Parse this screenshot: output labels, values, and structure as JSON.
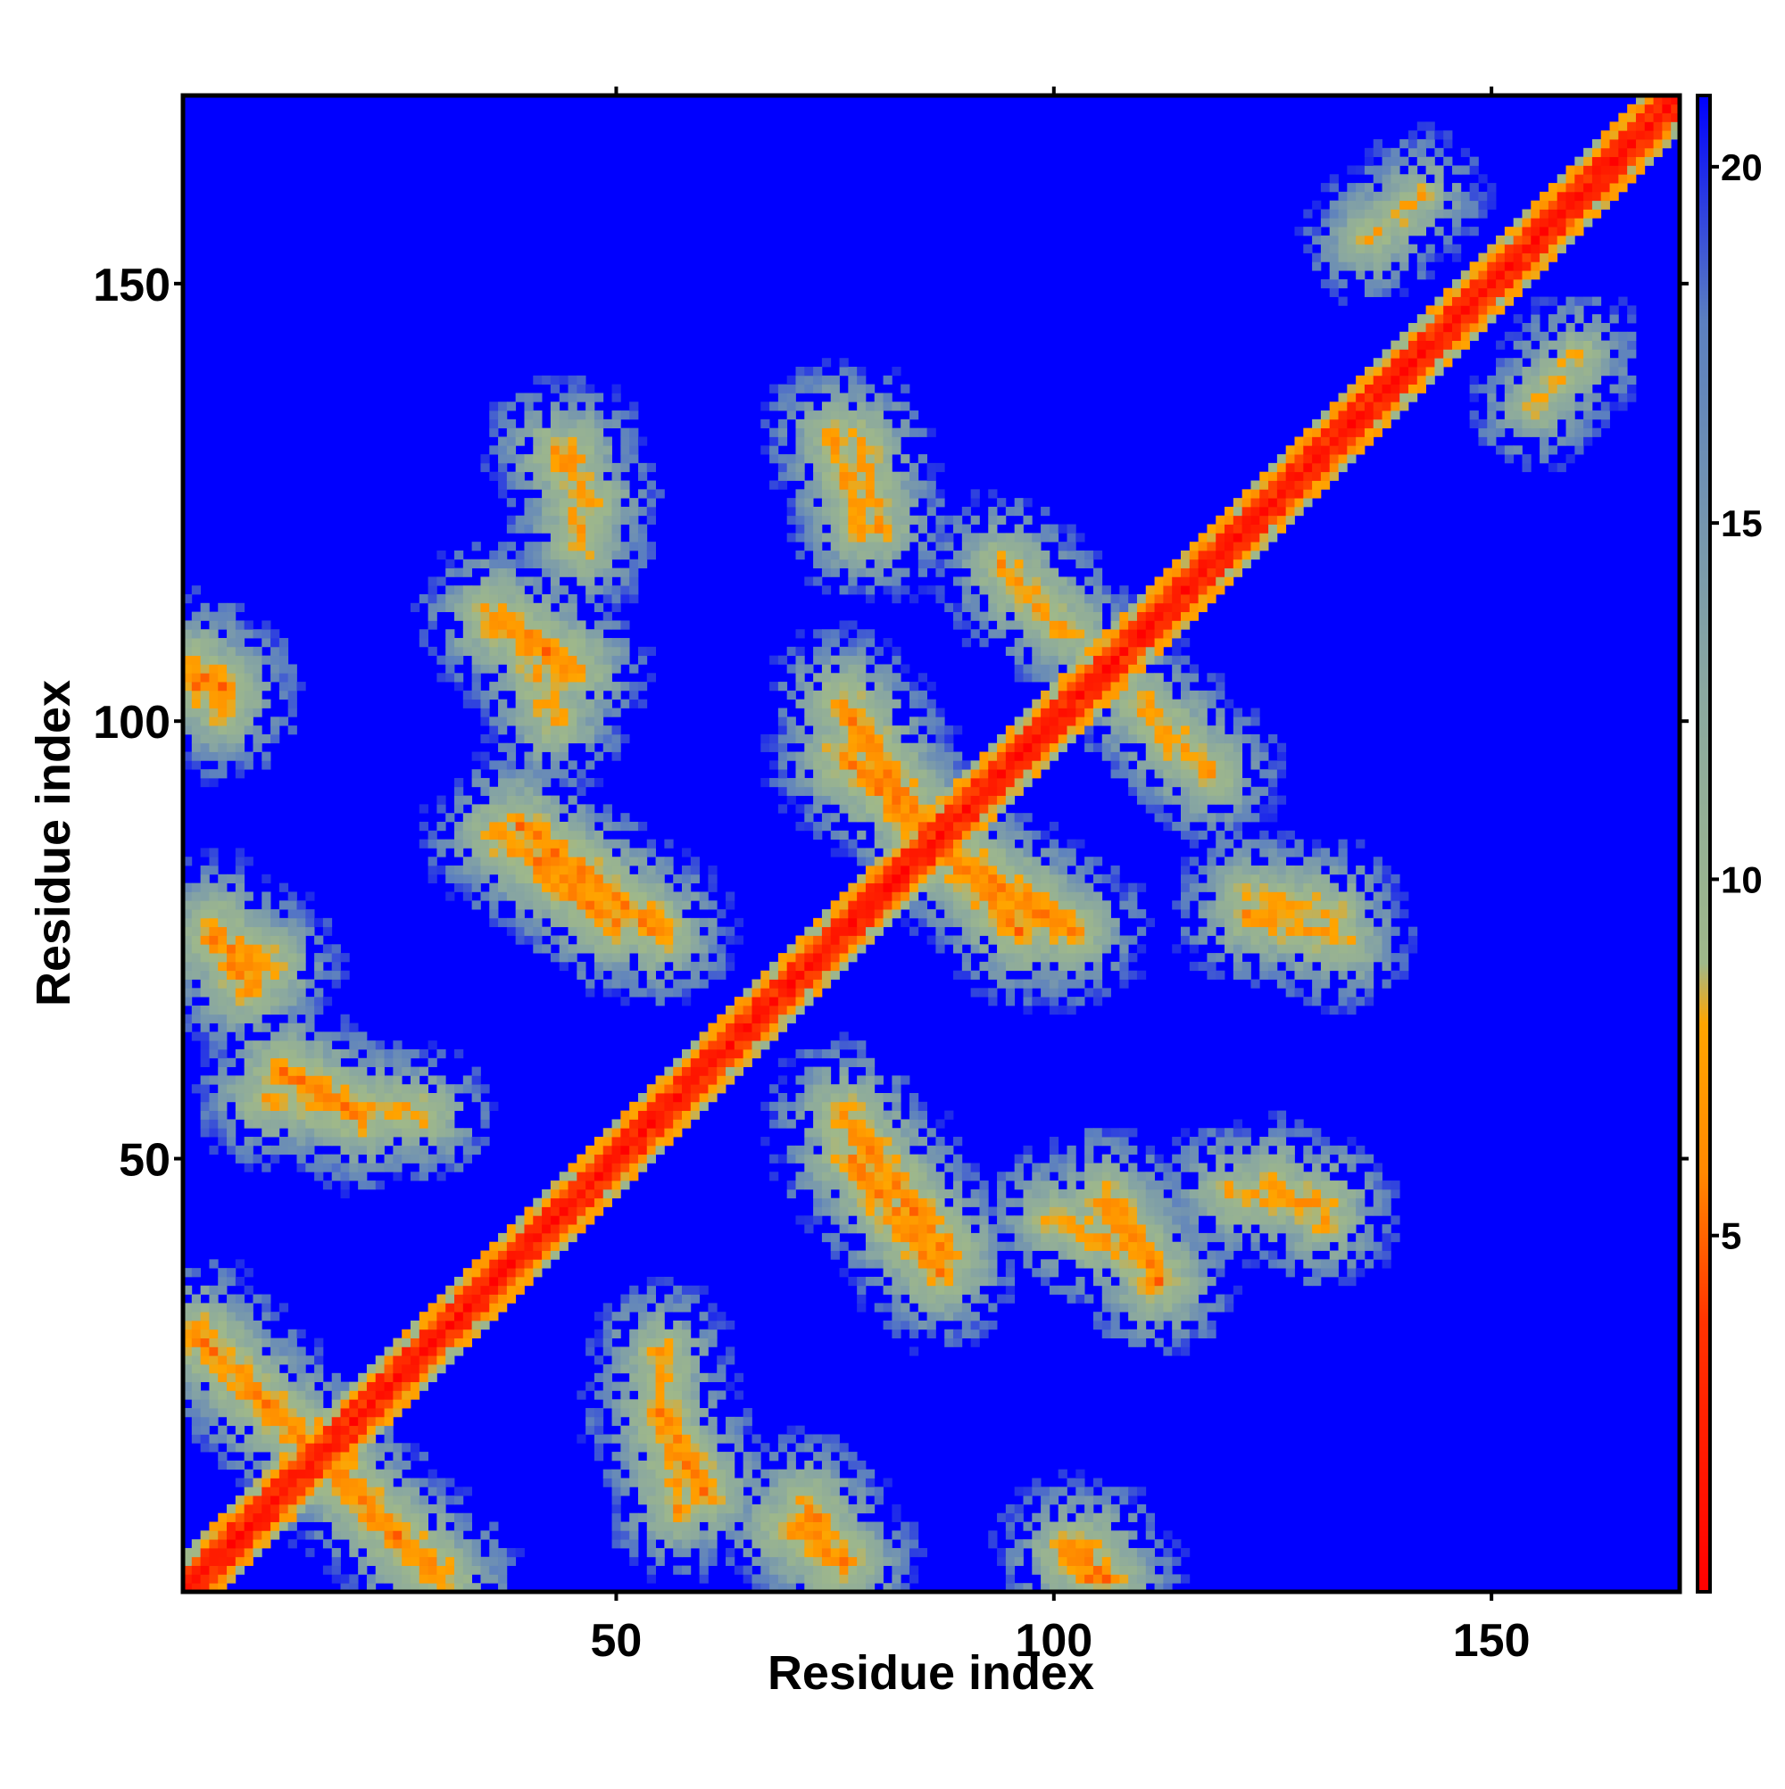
{
  "chart_data": {
    "type": "heatmap",
    "title": "",
    "xlabel": "Residue index",
    "ylabel": "Residue index",
    "xlim": [
      1,
      171
    ],
    "ylim": [
      1,
      171
    ],
    "x_ticks": [
      50,
      100,
      150
    ],
    "y_ticks": [
      50,
      100,
      150
    ],
    "x_tick_labels": [
      "50",
      "100",
      "150"
    ],
    "y_tick_labels": [
      "50",
      "100",
      "150"
    ],
    "grid": false,
    "legend": "right colorbar",
    "colorbar": {
      "range": [
        0,
        21
      ],
      "ticks": [
        5,
        10,
        15,
        20
      ],
      "tick_labels": [
        "5",
        "10",
        "15",
        "20"
      ],
      "colors": [
        "#ff0000",
        "#ff3300",
        "#ff8800",
        "#ffa500",
        "#9fb88a",
        "#8aa8a0",
        "#5b7fc0",
        "#0000ff"
      ],
      "stops": [
        0,
        0.18,
        0.28,
        0.38,
        0.42,
        0.6,
        0.85,
        1
      ]
    },
    "matrix_size": 171,
    "contact_bands": [
      {
        "x": [
          1,
          30
        ],
        "y": [
          1,
          30
        ],
        "kind": "diagonal",
        "value": 1
      },
      {
        "x": [
          2,
          30
        ],
        "y": [
          30,
          2
        ],
        "kind": "anti",
        "value": 6
      },
      {
        "x": [
          4,
          10
        ],
        "y": [
          75,
          72
        ],
        "kind": "blob",
        "value": 6
      },
      {
        "x": [
          2,
          5
        ],
        "y": [
          104,
          104
        ],
        "kind": "blob",
        "value": 6
      },
      {
        "x": [
          10,
          28
        ],
        "y": [
          57,
          55
        ],
        "kind": "blob",
        "value": 7
      },
      {
        "x": [
          37,
          50
        ],
        "y": [
          87,
          77
        ],
        "kind": "anti",
        "value": 6
      },
      {
        "x": [
          36,
          45
        ],
        "y": [
          112,
          106
        ],
        "kind": "anti",
        "value": 6
      },
      {
        "x": [
          43,
          47
        ],
        "y": [
          131,
          125
        ],
        "kind": "blob",
        "value": 7
      },
      {
        "x": [
          55,
          60
        ],
        "y": [
          21,
          12
        ],
        "kind": "blob",
        "value": 6
      },
      {
        "x": [
          70,
          76
        ],
        "y": [
          8,
          4
        ],
        "kind": "blob",
        "value": 6
      },
      {
        "x": [
          76,
          88
        ],
        "y": [
          55,
          39
        ],
        "kind": "anti",
        "value": 6
      },
      {
        "x": [
          76,
          85
        ],
        "y": [
          96,
          88
        ],
        "kind": "anti",
        "value": 6
      },
      {
        "x": [
          78,
          80
        ],
        "y": [
          132,
          122
        ],
        "kind": "blob",
        "value": 7
      },
      {
        "x": [
          88,
          102
        ],
        "y": [
          85,
          76
        ],
        "kind": "anti",
        "value": 6
      },
      {
        "x": [
          100,
          110
        ],
        "y": [
          43,
          39
        ],
        "kind": "anti",
        "value": 7
      },
      {
        "x": [
          102,
          106
        ],
        "y": [
          5,
          2
        ],
        "kind": "blob",
        "value": 6
      },
      {
        "x": [
          96,
          102
        ],
        "y": [
          115,
          110
        ],
        "kind": "blob",
        "value": 7
      },
      {
        "x": [
          113,
          118
        ],
        "y": [
          99,
          94
        ],
        "kind": "blob",
        "value": 7
      },
      {
        "x": [
          122,
          133
        ],
        "y": [
          78,
          75
        ],
        "kind": "blob",
        "value": 7
      },
      {
        "x": [
          120,
          131
        ],
        "y": [
          46,
          45
        ],
        "kind": "blob",
        "value": 7
      },
      {
        "x": [
          136,
          142
        ],
        "y": [
          155,
          160
        ],
        "kind": "blob",
        "value": 8
      }
    ]
  }
}
